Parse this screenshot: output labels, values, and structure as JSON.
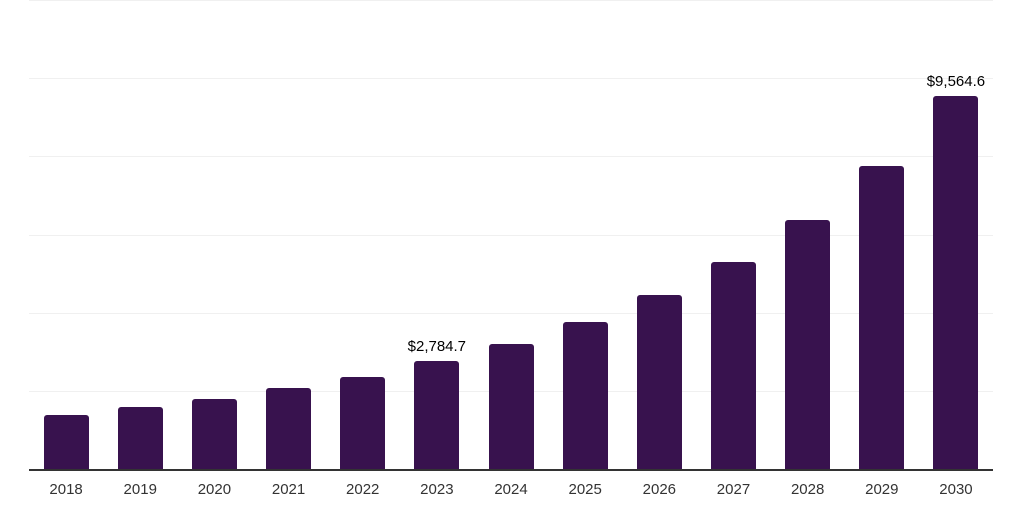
{
  "chart_data": {
    "type": "bar",
    "title": "",
    "xlabel": "",
    "ylabel": "",
    "categories": [
      "2018",
      "2019",
      "2020",
      "2021",
      "2022",
      "2023",
      "2024",
      "2025",
      "2026",
      "2027",
      "2028",
      "2029",
      "2030"
    ],
    "values": [
      1400,
      1600,
      1810,
      2090,
      2370,
      2784.7,
      3220,
      3780,
      4480,
      5320,
      6400,
      7780,
      9564.6
    ],
    "labeled_points": [
      {
        "category": "2023",
        "label": "$2,784.7"
      },
      {
        "category": "2030",
        "label": "$9,564.6"
      }
    ],
    "ylim": [
      0,
      12000
    ],
    "ytick_interval": 2000,
    "y_tick_labels_shown": false,
    "grid": "horizontal",
    "legend": "none"
  },
  "style": {
    "bar_color": "#38124E",
    "axis_line_color": "#333333",
    "gridline_color": "#F0F0F0",
    "value_label_color": "#000000",
    "tick_label_color": "#333333",
    "background_color": "#FFFFFF"
  }
}
